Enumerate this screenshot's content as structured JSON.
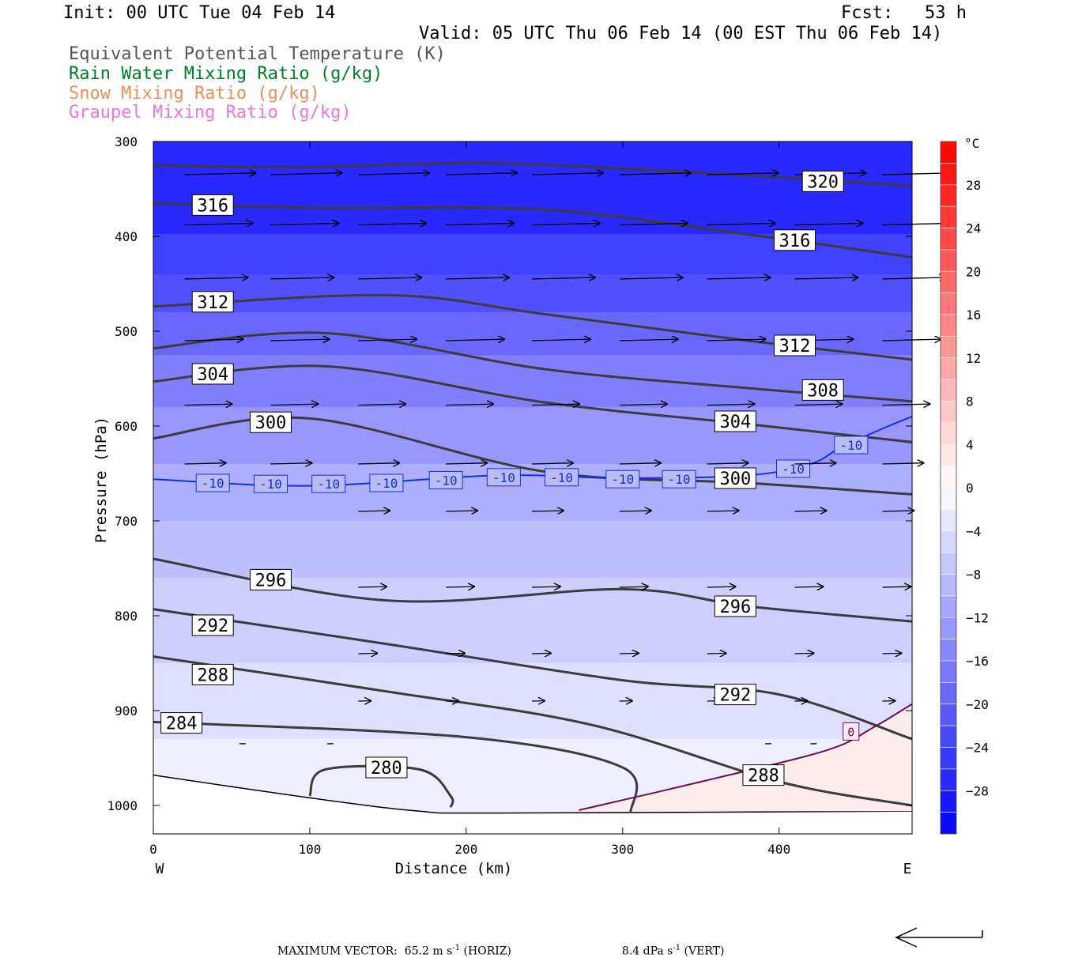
{
  "header": {
    "init": "Init: 00 UTC Tue 04 Feb 14",
    "fcst": "Fcst:   53 h",
    "valid": "Valid: 05 UTC Thu 06 Feb 14 (00 EST Thu 06 Feb 14)"
  },
  "fields": [
    {
      "label": "Equivalent Potential Temperature (K)",
      "color": "#555555"
    },
    {
      "label": "Rain Water Mixing Ratio (g/kg)",
      "color": "#00802a"
    },
    {
      "label": "Snow Mixing Ratio (g/kg)",
      "color": "#e8905a"
    },
    {
      "label": "Graupel Mixing Ratio (g/kg)",
      "color": "#e878e0"
    }
  ],
  "footer": {
    "max_vector_label": "MAXIMUM VECTOR:",
    "horiz_value": "65.2 m s",
    "horiz_sup": "-1",
    "horiz_tag": " (HORIZ)",
    "vert_value": "8.4 dPa s",
    "vert_sup": "-1",
    "vert_tag": " (VERT)"
  },
  "chart_data": {
    "type": "cross-section",
    "xlabel": "Distance (km)",
    "ylabel": "Pressure (hPa)",
    "xlim": [
      0,
      485
    ],
    "ylim": [
      1030,
      300
    ],
    "x_ticks": [
      "0",
      "100",
      "200",
      "300",
      "400"
    ],
    "y_ticks": [
      "300",
      "400",
      "500",
      "600",
      "700",
      "800",
      "900",
      "1000"
    ],
    "x_left_label": "W",
    "x_right_label": "E",
    "colorbar": {
      "unit": "°C",
      "labels": [
        "28",
        "24",
        "20",
        "16",
        "12",
        "8",
        "4",
        "0",
        "-4",
        "-8",
        "-12",
        "-16",
        "-20",
        "-24",
        "-28"
      ],
      "range": [
        -32,
        32
      ]
    },
    "theta_e_contours": [
      {
        "value": "320",
        "points": [
          [
            0,
            325
          ],
          [
            100,
            327
          ],
          [
            220,
            323
          ],
          [
            380,
            336
          ],
          [
            485,
            347
          ]
        ]
      },
      {
        "value": "316",
        "points": [
          [
            0,
            365
          ],
          [
            100,
            370
          ],
          [
            250,
            372
          ],
          [
            380,
            398
          ],
          [
            485,
            422
          ]
        ]
      },
      {
        "value": "312",
        "points": [
          [
            0,
            474
          ],
          [
            150,
            462
          ],
          [
            250,
            482
          ],
          [
            380,
            510
          ],
          [
            485,
            530
          ]
        ]
      },
      {
        "value": "308",
        "points": [
          [
            0,
            518
          ],
          [
            110,
            502
          ],
          [
            250,
            540
          ],
          [
            380,
            560
          ],
          [
            485,
            574
          ]
        ]
      },
      {
        "value": "304",
        "points": [
          [
            0,
            553
          ],
          [
            110,
            537
          ],
          [
            250,
            575
          ],
          [
            380,
            598
          ],
          [
            485,
            617
          ]
        ]
      },
      {
        "value": "300",
        "points": [
          [
            0,
            613
          ],
          [
            100,
            592
          ],
          [
            250,
            648
          ],
          [
            380,
            660
          ],
          [
            485,
            672
          ]
        ]
      },
      {
        "value": "296",
        "points": [
          [
            0,
            740
          ],
          [
            150,
            784
          ],
          [
            300,
            772
          ],
          [
            380,
            790
          ],
          [
            485,
            806
          ]
        ]
      },
      {
        "value": "292",
        "points": [
          [
            0,
            793
          ],
          [
            150,
            830
          ],
          [
            300,
            868
          ],
          [
            400,
            883
          ],
          [
            485,
            930
          ]
        ]
      },
      {
        "value": "288",
        "points": [
          [
            0,
            843
          ],
          [
            150,
            880
          ],
          [
            280,
            915
          ],
          [
            400,
            975
          ],
          [
            485,
            1000
          ]
        ]
      },
      {
        "value": "284",
        "points": [
          [
            0,
            912
          ],
          [
            200,
            928
          ],
          [
            300,
            960
          ],
          [
            305,
            1008
          ]
        ]
      },
      {
        "value": "280",
        "points": [
          [
            100,
            990
          ],
          [
            110,
            962
          ],
          [
            170,
            962
          ],
          [
            190,
            990
          ],
          [
            190,
            1002
          ]
        ]
      }
    ],
    "contour_labels": [
      {
        "text": "320",
        "x": 428,
        "p": 342
      },
      {
        "text": "316",
        "x": 38,
        "p": 367
      },
      {
        "text": "316",
        "x": 410,
        "p": 404
      },
      {
        "text": "312",
        "x": 38,
        "p": 469
      },
      {
        "text": "312",
        "x": 410,
        "p": 515
      },
      {
        "text": "304",
        "x": 38,
        "p": 545
      },
      {
        "text": "308",
        "x": 428,
        "p": 562
      },
      {
        "text": "300",
        "x": 75,
        "p": 596
      },
      {
        "text": "304",
        "x": 372,
        "p": 595
      },
      {
        "text": "300",
        "x": 372,
        "p": 655
      },
      {
        "text": "296",
        "x": 75,
        "p": 762
      },
      {
        "text": "296",
        "x": 372,
        "p": 790
      },
      {
        "text": "292",
        "x": 38,
        "p": 810
      },
      {
        "text": "288",
        "x": 38,
        "p": 862
      },
      {
        "text": "292",
        "x": 372,
        "p": 883
      },
      {
        "text": "284",
        "x": 18,
        "p": 913
      },
      {
        "text": "280",
        "x": 149,
        "p": 960
      },
      {
        "text": "288",
        "x": 390,
        "p": 968
      }
    ],
    "isotherm_minus10": {
      "value": "-10",
      "points": [
        [
          0,
          656
        ],
        [
          100,
          663
        ],
        [
          220,
          652
        ],
        [
          300,
          655
        ],
        [
          380,
          652
        ],
        [
          420,
          640
        ],
        [
          440,
          622
        ],
        [
          470,
          600
        ],
        [
          485,
          590
        ]
      ],
      "labels": [
        [
          38,
          660
        ],
        [
          75,
          661
        ],
        [
          112,
          661
        ],
        [
          149,
          660
        ],
        [
          187,
          657
        ],
        [
          224,
          654
        ],
        [
          261,
          654
        ],
        [
          300,
          656
        ],
        [
          336,
          656
        ],
        [
          409,
          645
        ],
        [
          446,
          620
        ]
      ]
    },
    "isotherm_zero": {
      "value": "0",
      "points": [
        [
          272,
          1005
        ],
        [
          350,
          975
        ],
        [
          430,
          942
        ],
        [
          460,
          918
        ],
        [
          485,
          893
        ]
      ],
      "label": [
        446,
        922
      ]
    },
    "temperature_bands": [
      {
        "temp": -27,
        "p_top": 300,
        "p_bot": 398
      },
      {
        "temp": -24,
        "p_top": 398,
        "p_bot": 440
      },
      {
        "temp": -22,
        "p_top": 440,
        "p_bot": 480
      },
      {
        "temp": -19,
        "p_top": 480,
        "p_bot": 525
      },
      {
        "temp": -16,
        "p_top": 525,
        "p_bot": 580
      },
      {
        "temp": -13,
        "p_top": 580,
        "p_bot": 640
      },
      {
        "temp": -10,
        "p_top": 640,
        "p_bot": 700
      },
      {
        "temp": -8,
        "p_top": 700,
        "p_bot": 760
      },
      {
        "temp": -6,
        "p_top": 760,
        "p_bot": 850
      },
      {
        "temp": -4,
        "p_top": 850,
        "p_bot": 930
      },
      {
        "temp": -2,
        "p_top": 930,
        "p_bot": 1030
      }
    ],
    "surface_pressure": [
      [
        0,
        968
      ],
      [
        100,
        992
      ],
      [
        170,
        1006
      ],
      [
        220,
        1008
      ],
      [
        485,
        1006
      ]
    ],
    "wind_vectors": [
      {
        "p": 335,
        "xs": [
          20,
          75,
          131,
          187,
          242,
          298,
          354,
          410,
          466
        ],
        "len": 45
      },
      {
        "p": 388,
        "xs": [
          20,
          75,
          131,
          187,
          242,
          298,
          354,
          410,
          466
        ],
        "len": 43
      },
      {
        "p": 445,
        "xs": [
          20,
          75,
          131,
          187,
          242,
          298,
          354,
          410,
          466
        ],
        "len": 40
      },
      {
        "p": 510,
        "xs": [
          20,
          75,
          131,
          187,
          242,
          298,
          354,
          410,
          466
        ],
        "len": 37
      },
      {
        "p": 578,
        "xs": [
          20,
          75,
          131,
          187,
          242,
          298,
          354,
          410,
          466
        ],
        "len": 30
      },
      {
        "p": 640,
        "xs": [
          20,
          75,
          131,
          187,
          242,
          298,
          354,
          410,
          466
        ],
        "len": 26
      },
      {
        "p": 690,
        "xs": [
          131,
          187,
          242,
          298,
          354,
          410,
          466
        ],
        "len": 20
      },
      {
        "p": 770,
        "xs": [
          131,
          187,
          242,
          298,
          354,
          410,
          466
        ],
        "len": 18
      },
      {
        "p": 840,
        "xs": [
          131,
          187,
          242,
          298,
          354,
          410,
          466
        ],
        "len": 12
      },
      {
        "p": 890,
        "xs": [
          131,
          187,
          242,
          298,
          354,
          410,
          466
        ],
        "len": 8
      },
      {
        "p": 935,
        "xs": [
          55,
          111,
          391,
          420
        ],
        "len": 4
      }
    ]
  }
}
